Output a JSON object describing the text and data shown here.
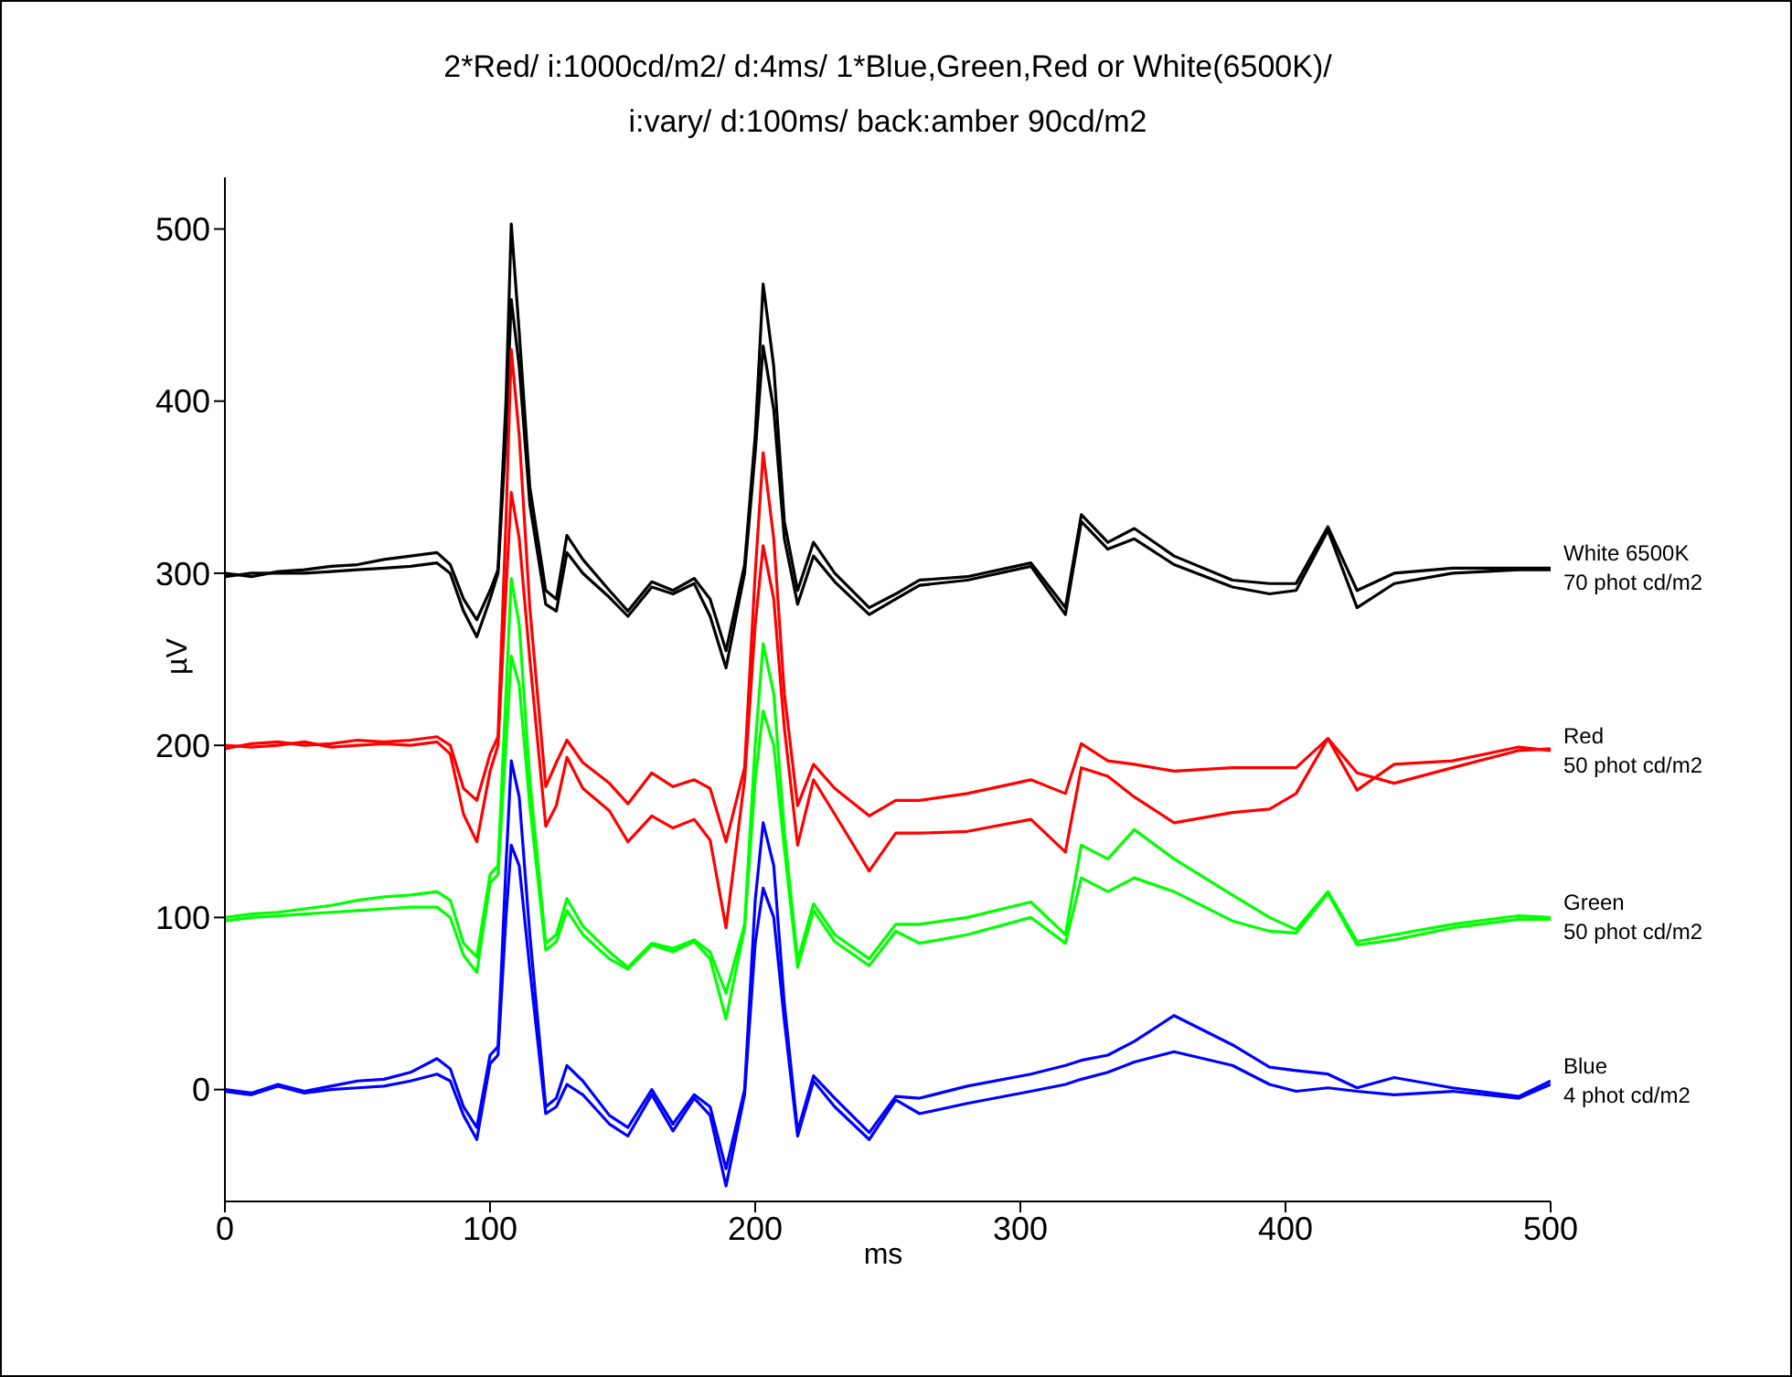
{
  "chart_data": {
    "type": "line",
    "title": "2*Red/ i:1000cd/m2/ d:4ms/ 1*Blue,Green,Red or White(6500K)/\ni:vary/ d:100ms/ back:amber 90cd/m2",
    "xlabel": "ms",
    "ylabel": "µV",
    "xlim": [
      0,
      500
    ],
    "xticks": [
      0,
      100,
      200,
      300,
      400,
      500
    ],
    "ylim": [
      -65,
      530
    ],
    "yticks": [
      0,
      100,
      200,
      300,
      400,
      500
    ],
    "marker": "none",
    "line_style": "solid",
    "x": [
      0,
      10,
      20,
      30,
      40,
      50,
      60,
      70,
      80,
      85,
      90,
      95,
      100,
      103,
      106,
      108,
      111,
      115,
      121,
      125,
      129,
      135,
      145,
      152,
      161,
      169,
      177,
      183,
      189,
      196,
      200,
      203,
      207,
      211,
      216,
      222,
      230,
      243,
      253,
      262,
      280,
      304,
      317,
      323,
      333,
      343,
      358,
      380,
      394,
      404,
      416,
      427,
      441,
      463,
      488,
      500
    ],
    "series": [
      {
        "name": "White 6500K\n70 phot cd/m2",
        "color": "#000000",
        "values": [
          300,
          298,
          301,
          302,
          304,
          305,
          308,
          310,
          312,
          305,
          285,
          273,
          290,
          302,
          400,
          503,
          440,
          350,
          290,
          285,
          322,
          308,
          290,
          278,
          295,
          290,
          297,
          285,
          255,
          305,
          380,
          468,
          420,
          330,
          290,
          318,
          300,
          280,
          288,
          296,
          298,
          306,
          280,
          334,
          318,
          326,
          310,
          296,
          294,
          294,
          327,
          290,
          300,
          303,
          303,
          303
        ]
      },
      {
        "color": "#000000",
        "values": [
          298,
          300,
          300,
          300,
          301,
          302,
          303,
          304,
          306,
          300,
          278,
          263,
          285,
          300,
          380,
          459,
          420,
          340,
          282,
          278,
          312,
          300,
          286,
          275,
          292,
          288,
          294,
          275,
          245,
          300,
          370,
          432,
          395,
          320,
          282,
          310,
          295,
          276,
          285,
          293,
          296,
          304,
          276,
          330,
          314,
          320,
          305,
          292,
          288,
          290,
          325,
          280,
          294,
          300,
          302,
          302
        ]
      },
      {
        "name": "Red\n50 phot cd/m2",
        "color": "#ff0000",
        "values": [
          198,
          201,
          202,
          200,
          201,
          203,
          202,
          203,
          205,
          200,
          175,
          168,
          195,
          205,
          330,
          430,
          380,
          280,
          176,
          190,
          203,
          190,
          178,
          166,
          184,
          176,
          180,
          175,
          144,
          187,
          300,
          370,
          320,
          230,
          165,
          189,
          175,
          159,
          168,
          168,
          172,
          180,
          172,
          201,
          191,
          189,
          185,
          187,
          187,
          187,
          204,
          174,
          189,
          191,
          199,
          197
        ]
      },
      {
        "color": "#ff0000",
        "values": [
          200,
          199,
          200,
          202,
          199,
          200,
          201,
          200,
          202,
          195,
          160,
          144,
          185,
          200,
          290,
          347,
          320,
          250,
          153,
          165,
          193,
          175,
          162,
          144,
          159,
          152,
          157,
          145,
          94,
          180,
          270,
          316,
          285,
          210,
          142,
          180,
          160,
          127,
          149,
          149,
          150,
          157,
          138,
          187,
          182,
          170,
          155,
          161,
          163,
          172,
          204,
          184,
          178,
          187,
          197,
          198
        ]
      },
      {
        "name": "Green\n50 phot cd/m2",
        "color": "#00ff00",
        "values": [
          100,
          102,
          103,
          105,
          107,
          110,
          112,
          113,
          115,
          110,
          85,
          77,
          125,
          130,
          230,
          297,
          270,
          180,
          85,
          90,
          111,
          95,
          80,
          71,
          85,
          82,
          87,
          80,
          56,
          96,
          200,
          259,
          230,
          150,
          75,
          108,
          90,
          76,
          96,
          96,
          100,
          109,
          90,
          142,
          134,
          151,
          134,
          113,
          100,
          93,
          115,
          86,
          90,
          96,
          101,
          100
        ]
      },
      {
        "color": "#00ff00",
        "values": [
          98,
          100,
          101,
          102,
          103,
          104,
          105,
          106,
          106,
          100,
          78,
          68,
          120,
          125,
          200,
          252,
          235,
          165,
          81,
          86,
          104,
          90,
          76,
          70,
          84,
          80,
          86,
          76,
          41,
          94,
          180,
          220,
          200,
          140,
          71,
          104,
          86,
          72,
          92,
          85,
          90,
          100,
          85,
          123,
          115,
          123,
          115,
          98,
          92,
          91,
          114,
          84,
          87,
          94,
          99,
          99
        ]
      },
      {
        "name": "Blue\n4 phot cd/m2",
        "color": "#0000ff",
        "values": [
          0,
          -2,
          3,
          -1,
          2,
          5,
          6,
          10,
          18,
          12,
          -10,
          -22,
          20,
          25,
          130,
          191,
          170,
          90,
          -10,
          -5,
          14,
          5,
          -15,
          -22,
          0,
          -20,
          -3,
          -10,
          -46,
          0,
          110,
          155,
          130,
          50,
          -24,
          8,
          -5,
          -25,
          -4,
          -5,
          2,
          9,
          14,
          17,
          20,
          28,
          43,
          26,
          13,
          11,
          9,
          1,
          7,
          1,
          -4,
          5
        ]
      },
      {
        "color": "#0000ff",
        "values": [
          -1,
          -3,
          2,
          -2,
          0,
          1,
          2,
          5,
          9,
          5,
          -15,
          -29,
          15,
          20,
          100,
          142,
          130,
          70,
          -14,
          -10,
          3,
          -3,
          -20,
          -27,
          -3,
          -24,
          -5,
          -15,
          -56,
          -3,
          85,
          117,
          100,
          40,
          -27,
          5,
          -10,
          -29,
          -6,
          -14,
          -8,
          -1,
          3,
          6,
          10,
          16,
          22,
          14,
          3,
          -1,
          1,
          -1,
          -3,
          -1,
          -5,
          3
        ]
      }
    ]
  }
}
